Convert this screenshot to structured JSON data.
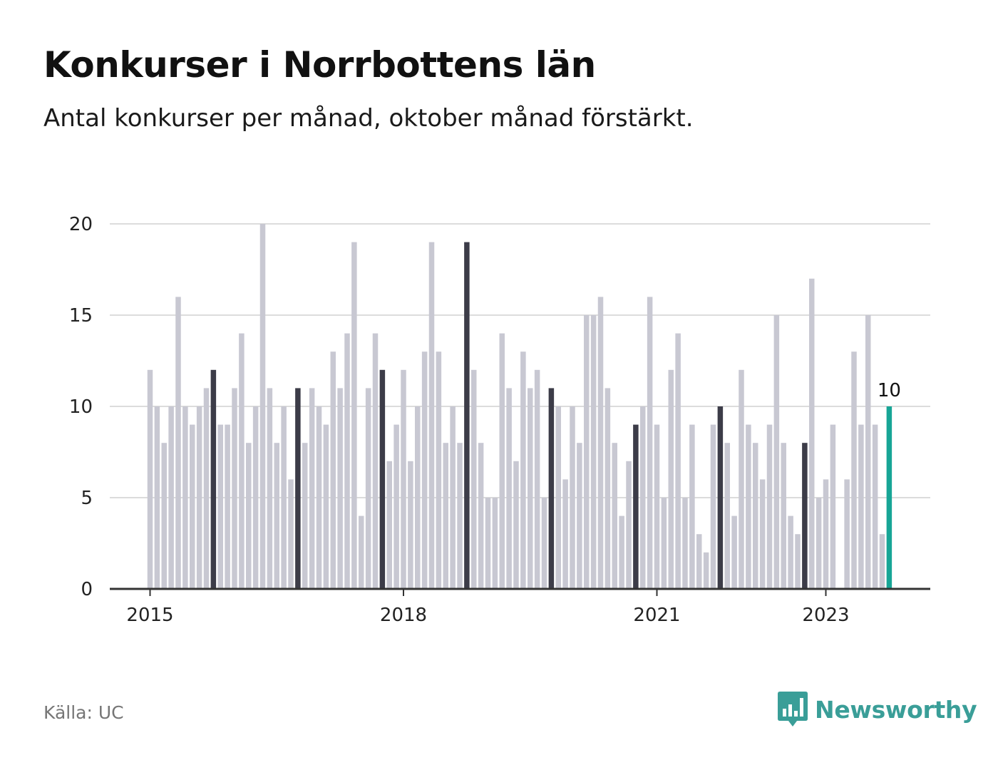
{
  "header": {
    "title": "Konkurser i Norrbottens län",
    "subtitle": "Antal konkurser per månad, oktober månad förstärkt."
  },
  "footer": {
    "source": "Källa: UC",
    "brand": "Newsworthy"
  },
  "colors": {
    "bar": "#c8c8d2",
    "highlight": "#3c3c48",
    "latest": "#17a596",
    "grid": "#dcdcdc",
    "axis": "#333333",
    "brand": "#3a9e98"
  },
  "chart_data": {
    "type": "bar",
    "title": "Konkurser i Norrbottens län",
    "subtitle": "Antal konkurser per månad, oktober månad förstärkt.",
    "ylim": [
      0,
      20
    ],
    "yticks": [
      0,
      5,
      10,
      15,
      20
    ],
    "xtick_labels": [
      {
        "label": "2015",
        "index": 0
      },
      {
        "label": "2018",
        "index": 36
      },
      {
        "label": "2021",
        "index": 72
      },
      {
        "label": "2023",
        "index": 96
      }
    ],
    "start": "2015-01",
    "end": "2023-10",
    "highlight_month": "oktober",
    "highlight_indices": [
      9,
      21,
      33,
      45,
      57,
      69,
      81,
      93
    ],
    "latest_label": "10",
    "values": [
      12,
      10,
      8,
      10,
      16,
      10,
      9,
      10,
      11,
      12,
      9,
      9,
      11,
      14,
      8,
      10,
      20,
      11,
      8,
      10,
      6,
      11,
      8,
      11,
      10,
      9,
      13,
      11,
      14,
      19,
      4,
      11,
      14,
      12,
      7,
      9,
      12,
      7,
      10,
      13,
      19,
      13,
      8,
      10,
      8,
      19,
      12,
      8,
      5,
      5,
      14,
      11,
      7,
      13,
      11,
      12,
      5,
      11,
      10,
      6,
      10,
      8,
      15,
      15,
      16,
      11,
      8,
      4,
      7,
      9,
      10,
      16,
      9,
      5,
      12,
      14,
      5,
      9,
      3,
      2,
      9,
      10,
      8,
      4,
      12,
      9,
      8,
      6,
      9,
      15,
      8,
      4,
      3,
      8,
      17,
      5,
      6,
      9,
      0,
      6,
      13,
      9,
      15,
      9,
      3,
      10
    ]
  }
}
